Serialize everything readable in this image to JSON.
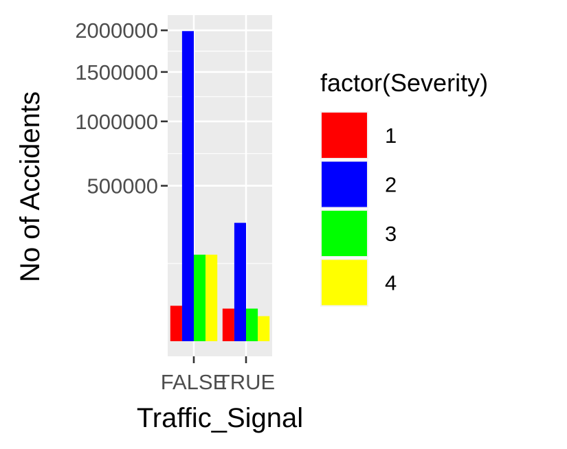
{
  "chart_data": {
    "type": "bar",
    "title": "",
    "xlabel": "Traffic_Signal",
    "ylabel": "No of Accidents",
    "categories": [
      "FALSE",
      "TRUE"
    ],
    "y_scale": "sqrt",
    "ylim": [
      0,
      2000000
    ],
    "y_ticks": [
      500000,
      1000000,
      1500000,
      2000000
    ],
    "y_tick_labels": [
      "500000",
      "1000000",
      "1500000",
      "2000000"
    ],
    "legend_title": "factor(Severity)",
    "legend_position": "right",
    "grid": true,
    "series": [
      {
        "name": "1",
        "color": "#FF0000",
        "values": [
          26000,
          22000
        ]
      },
      {
        "name": "2",
        "color": "#0000FF",
        "values": [
          1990000,
          290000
        ]
      },
      {
        "name": "3",
        "color": "#00FF00",
        "values": [
          155000,
          22000
        ]
      },
      {
        "name": "4",
        "color": "#FFFF00",
        "values": [
          155000,
          13000
        ]
      }
    ]
  }
}
